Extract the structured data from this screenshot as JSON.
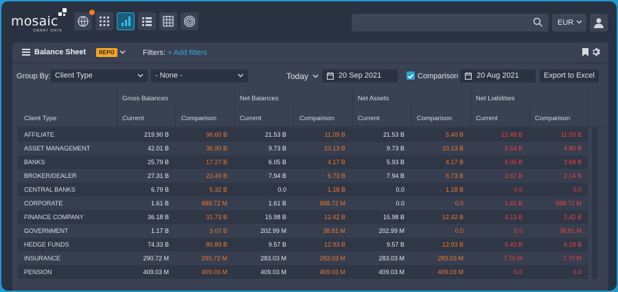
{
  "brand": {
    "name": "mosaic",
    "tagline": "SMART DATA"
  },
  "nav": {
    "icons": [
      "globe-icon",
      "grid-apps-icon",
      "bar-chart-icon",
      "list-icon",
      "table-icon",
      "target-icon"
    ],
    "active": "bar-chart-icon"
  },
  "header": {
    "search_placeholder": "",
    "currency": "EUR"
  },
  "panel": {
    "title": "Balance Sheet",
    "badge": "REPO",
    "filters_label": "Filters:",
    "add_filters": "+ Add filters"
  },
  "toolbar": {
    "group_by_label": "Group By:",
    "group_by_value": "Client Type",
    "second_group_value": "- None -",
    "period": "Today",
    "date": "20 Sep 2021",
    "comparison_label": "Comparison",
    "comparison_checked": true,
    "comparison_date": "20 Aug 2021",
    "export_label": "Export to Excel"
  },
  "table": {
    "groups": [
      "Gross Balances",
      "Net Balances",
      "Net Assets",
      "Net Liabilities"
    ],
    "first_col": "Client Type",
    "sub_cols": [
      "Current",
      "Comparison"
    ],
    "rows": [
      {
        "name": "AFFILIATE",
        "v": [
          "219.90 B",
          "96.60 B",
          "21.53 B",
          "11.09 B",
          "21.53 B",
          "5.40 B",
          "12.48 B",
          "11.09 B"
        ]
      },
      {
        "name": "ASSET MANAGEMENT",
        "v": [
          "42.01 B",
          "36.90 B",
          "9.73 B",
          "10.13 B",
          "9.73 B",
          "10.13 B",
          "5.64 B",
          "4.80 B"
        ]
      },
      {
        "name": "BANKS",
        "v": [
          "25.79 B",
          "17.27 B",
          "6.05 B",
          "4.17 B",
          "5.93 B",
          "4.17 B",
          "6.05 B",
          "3.69 B"
        ]
      },
      {
        "name": "BROKER/DEALER",
        "v": [
          "27.31 B",
          "23.49 B",
          "7.94 B",
          "6.73 B",
          "7.94 B",
          "6.73 B",
          "3.67 B",
          "2.14 B"
        ]
      },
      {
        "name": "CENTRAL BANKS",
        "v": [
          "6.79 B",
          "5.32 B",
          "0.0",
          "1.18 B",
          "0.0",
          "1.18 B",
          "0.0",
          "0.0"
        ]
      },
      {
        "name": "CORPORATE",
        "v": [
          "1.61 B",
          "888.72 M",
          "1.61 B",
          "888.72 M",
          "0.0",
          "0.0",
          "1.61 B",
          "888.72 M"
        ]
      },
      {
        "name": "FINANCE COMPANY",
        "v": [
          "36.18 B",
          "31.73 B",
          "15.98 B",
          "12.42 B",
          "15.98 B",
          "12.42 B",
          "4.13 B",
          "2.42 B"
        ]
      },
      {
        "name": "GOVERNMENT",
        "v": [
          "1.17 B",
          "3.07 B",
          "202.99 M",
          "38.81 M",
          "202.99 M",
          "0.0",
          "0.0",
          "38.81 M"
        ]
      },
      {
        "name": "HEDGE FUNDS",
        "v": [
          "74.33 B",
          "80.89 B",
          "9.57 B",
          "12.93 B",
          "9.57 B",
          "12.93 B",
          "5.42 B",
          "6.18 B"
        ]
      },
      {
        "name": "INSURANCE",
        "v": [
          "290.72 M",
          "290.72 M",
          "283.03 M",
          "283.03 M",
          "283.03 M",
          "283.03 M",
          "7.70 M",
          "7.70 M"
        ]
      },
      {
        "name": "PENSION",
        "v": [
          "409.03 M",
          "409.03 M",
          "409.03 M",
          "409.03 M",
          "409.03 M",
          "409.03 M",
          "0.0",
          "0.0"
        ]
      }
    ]
  },
  "colors": {
    "comparison": "#f07a2e",
    "liabilities": "#ef4444",
    "accent": "#2ca4d2",
    "badge": "#f5a623"
  }
}
